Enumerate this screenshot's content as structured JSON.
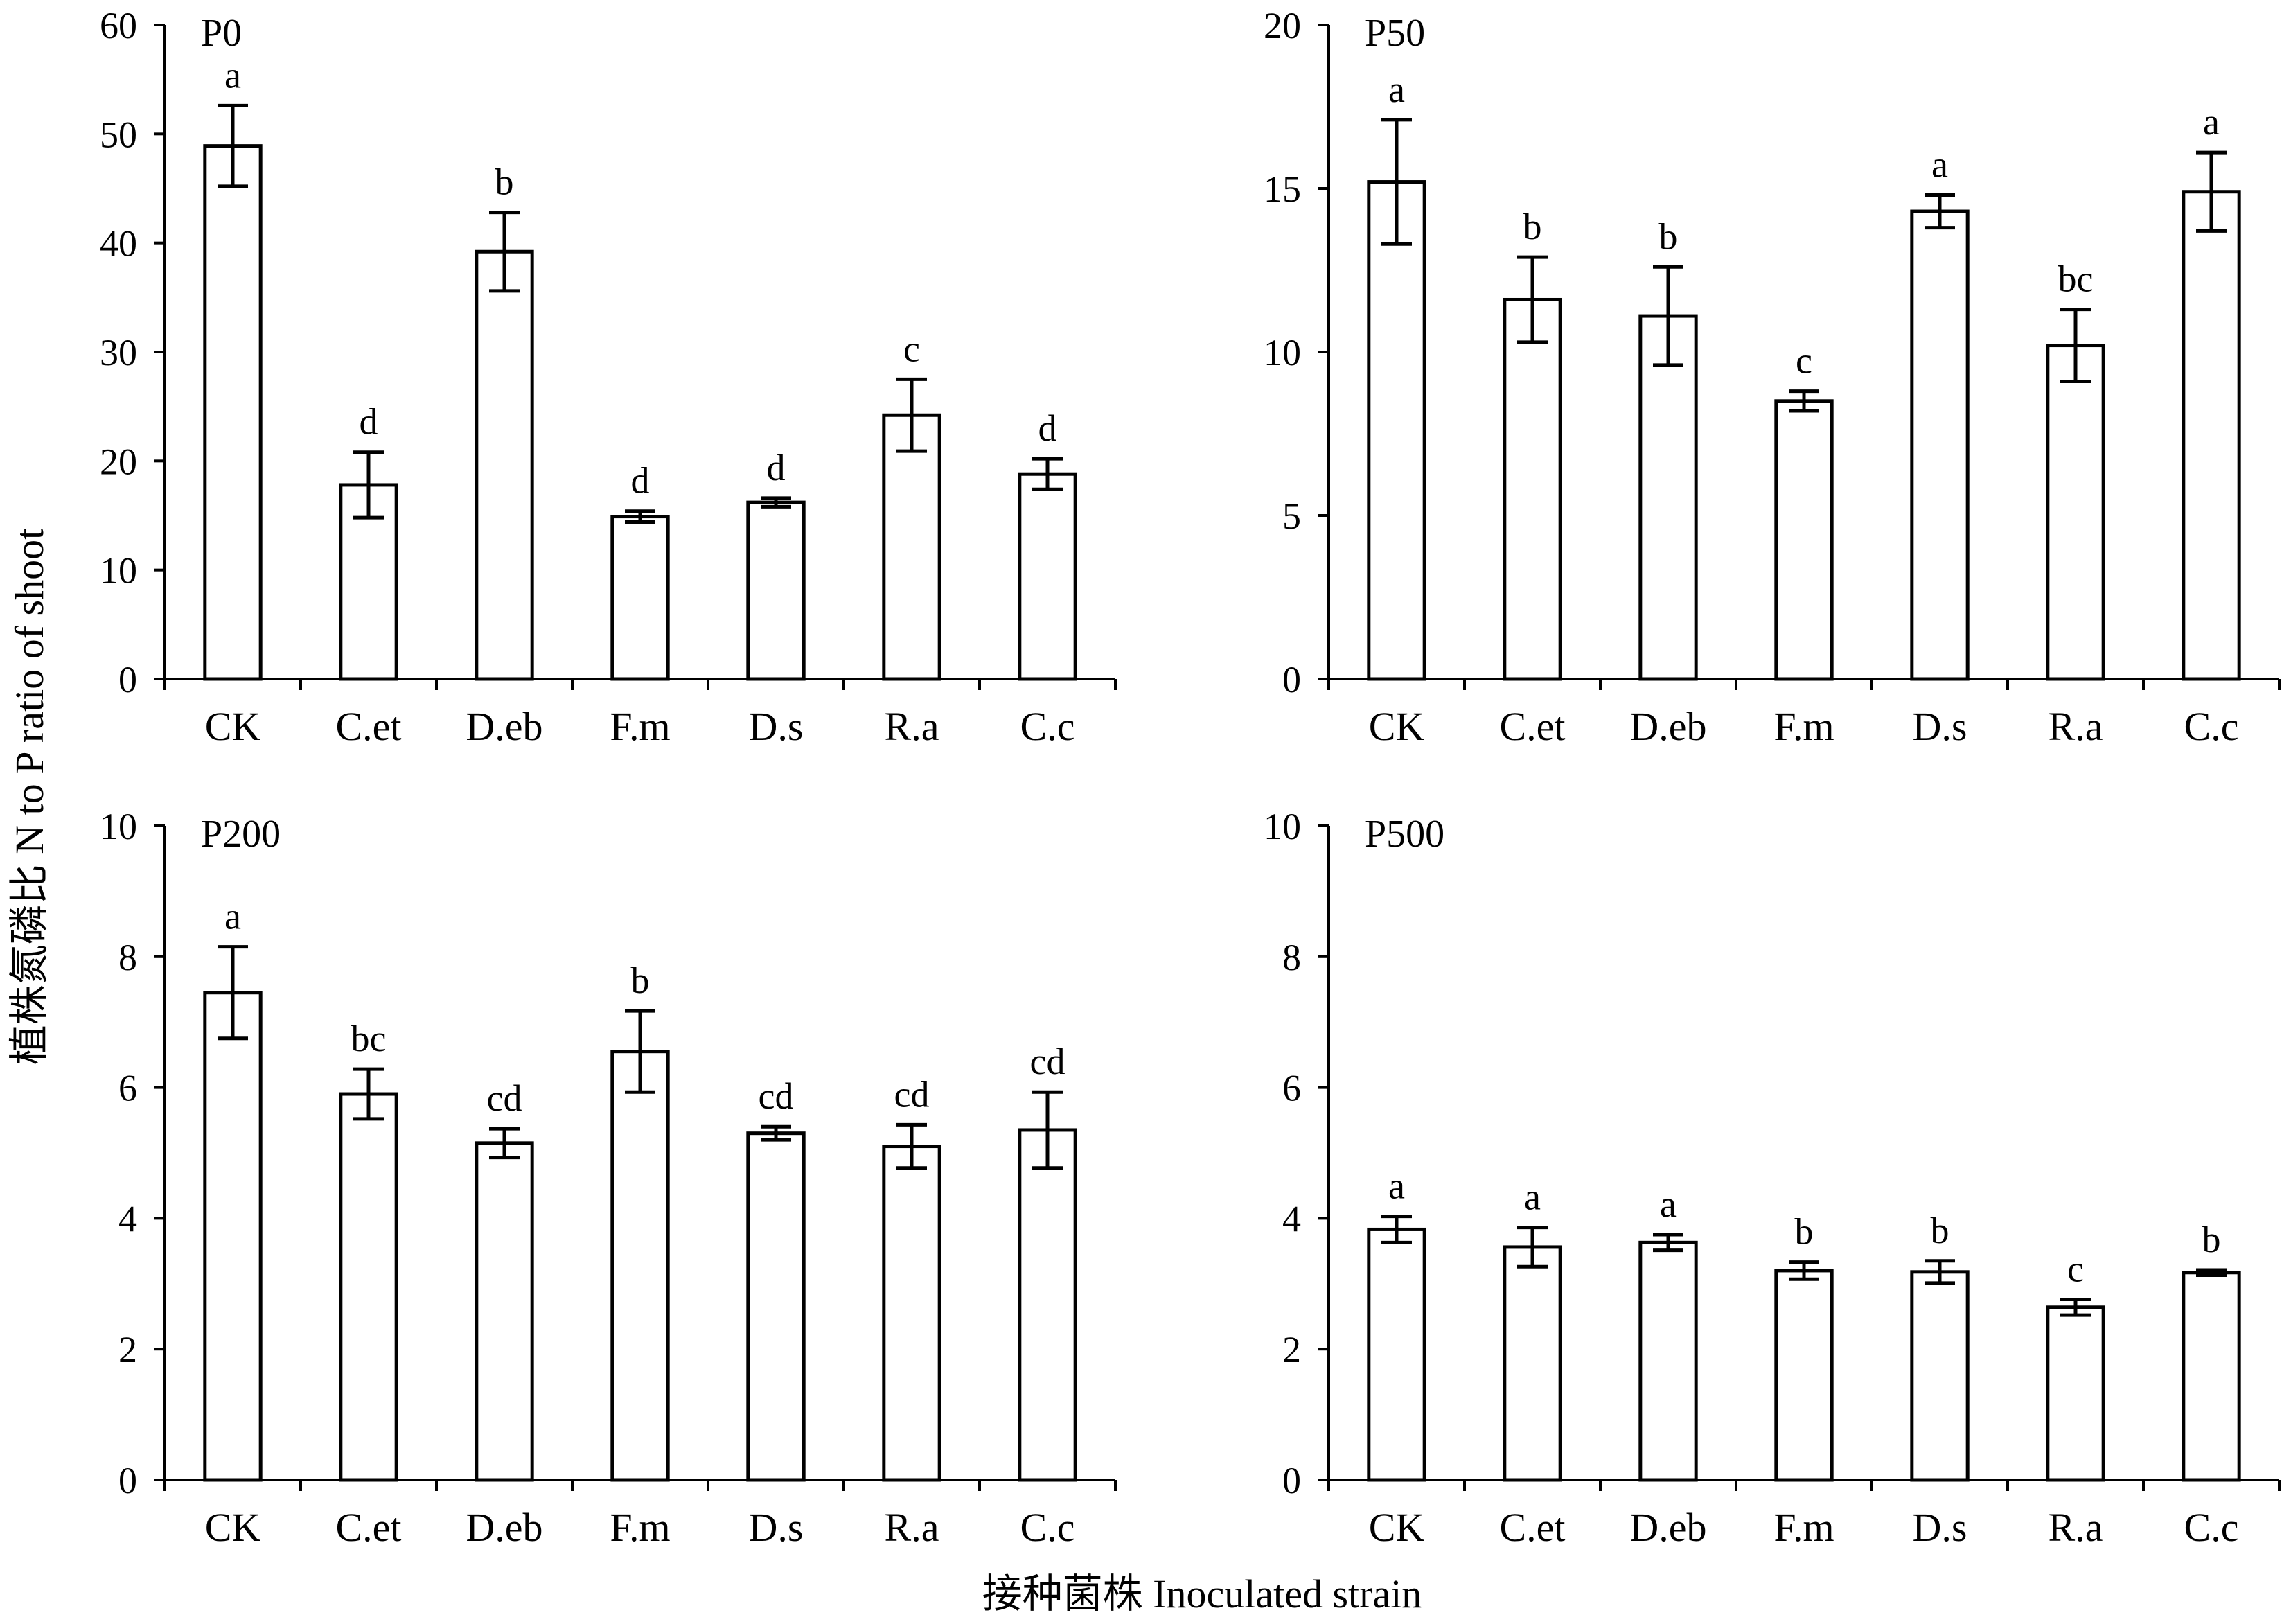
{
  "figure": {
    "ylabel": "植株氮磷比 N to P ratio of shoot",
    "xlabel": "接种菌株 Inoculated strain"
  },
  "chart_data": [
    {
      "type": "bar",
      "panel": "P0",
      "categories": [
        "CK",
        "C.et",
        "D.eb",
        "F.m",
        "D.s",
        "R.a",
        "C.c"
      ],
      "values": [
        48.9,
        17.8,
        39.2,
        14.9,
        16.2,
        24.2,
        18.8
      ],
      "errors": [
        3.7,
        3.0,
        3.6,
        0.5,
        0.4,
        3.3,
        1.4
      ],
      "significance": [
        "a",
        "d",
        "b",
        "d",
        "d",
        "c",
        "d"
      ],
      "ylim": [
        0,
        60
      ],
      "yticks": [
        0,
        10,
        20,
        30,
        40,
        50,
        60
      ]
    },
    {
      "type": "bar",
      "panel": "P50",
      "categories": [
        "CK",
        "C.et",
        "D.eb",
        "F.m",
        "D.s",
        "R.a",
        "C.c"
      ],
      "values": [
        15.2,
        11.6,
        11.1,
        8.5,
        14.3,
        10.2,
        14.9
      ],
      "errors": [
        1.9,
        1.3,
        1.5,
        0.3,
        0.5,
        1.1,
        1.2
      ],
      "significance": [
        "a",
        "b",
        "b",
        "c",
        "a",
        "bc",
        "a"
      ],
      "ylim": [
        0,
        20
      ],
      "yticks": [
        0,
        5,
        10,
        15,
        20
      ]
    },
    {
      "type": "bar",
      "panel": "P200",
      "categories": [
        "CK",
        "C.et",
        "D.eb",
        "F.m",
        "D.s",
        "R.a",
        "C.c"
      ],
      "values": [
        7.45,
        5.9,
        5.15,
        6.55,
        5.3,
        5.1,
        5.35
      ],
      "errors": [
        0.7,
        0.38,
        0.22,
        0.62,
        0.1,
        0.33,
        0.58
      ],
      "significance": [
        "a",
        "bc",
        "cd",
        "b",
        "cd",
        "cd",
        "cd"
      ],
      "ylim": [
        0,
        10
      ],
      "yticks": [
        0,
        2,
        4,
        6,
        8,
        10
      ]
    },
    {
      "type": "bar",
      "panel": "P500",
      "categories": [
        "CK",
        "C.et",
        "D.eb",
        "F.m",
        "D.s",
        "R.a",
        "C.c"
      ],
      "values": [
        3.83,
        3.56,
        3.63,
        3.2,
        3.18,
        2.64,
        3.17
      ],
      "errors": [
        0.2,
        0.3,
        0.12,
        0.13,
        0.17,
        0.12,
        0.04
      ],
      "significance": [
        "a",
        "a",
        "a",
        "b",
        "b",
        "c",
        "b"
      ],
      "ylim": [
        0,
        10
      ],
      "yticks": [
        0,
        2,
        4,
        6,
        8,
        10
      ]
    }
  ]
}
